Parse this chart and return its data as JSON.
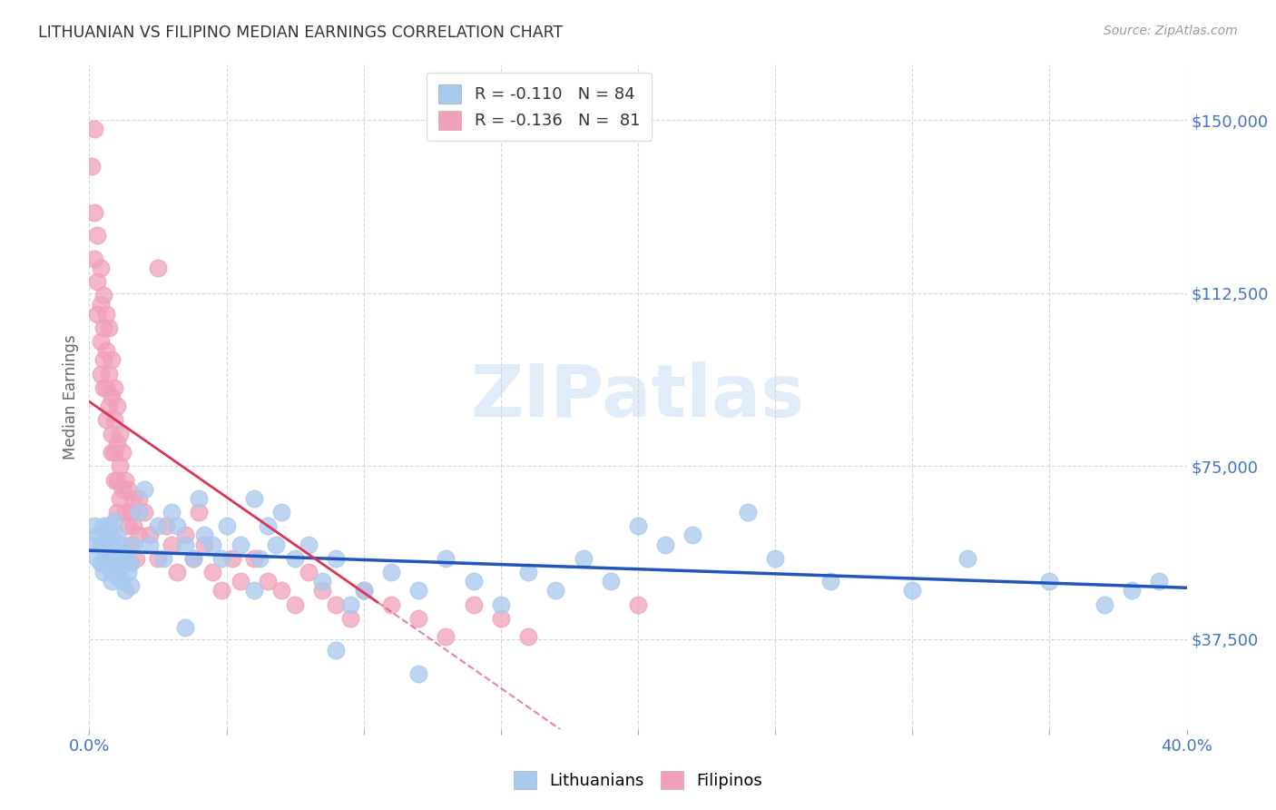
{
  "title": "LITHUANIAN VS FILIPINO MEDIAN EARNINGS CORRELATION CHART",
  "source": "Source: ZipAtlas.com",
  "ylabel": "Median Earnings",
  "yticks": [
    37500,
    75000,
    112500,
    150000
  ],
  "ytick_labels": [
    "$37,500",
    "$75,000",
    "$112,500",
    "$150,000"
  ],
  "bottom_legend_blue": "Lithuanians",
  "bottom_legend_pink": "Filipinos",
  "blue_color": "#A8C8EE",
  "pink_color": "#F0A0B8",
  "blue_line_color": "#2255BB",
  "pink_line_color": "#DD3355",
  "axis_color": "#4472C4",
  "xlim": [
    0.0,
    0.4
  ],
  "ylim": [
    18000,
    162000
  ],
  "blue_R": -0.11,
  "blue_N": 84,
  "pink_R": -0.136,
  "pink_N": 81,
  "blue_x": [
    0.001,
    0.002,
    0.003,
    0.003,
    0.004,
    0.004,
    0.005,
    0.005,
    0.005,
    0.006,
    0.006,
    0.007,
    0.007,
    0.007,
    0.008,
    0.008,
    0.008,
    0.009,
    0.009,
    0.009,
    0.01,
    0.01,
    0.01,
    0.011,
    0.011,
    0.012,
    0.012,
    0.013,
    0.013,
    0.014,
    0.015,
    0.015,
    0.016,
    0.018,
    0.02,
    0.022,
    0.025,
    0.027,
    0.03,
    0.032,
    0.035,
    0.038,
    0.04,
    0.042,
    0.045,
    0.048,
    0.05,
    0.055,
    0.06,
    0.062,
    0.065,
    0.068,
    0.07,
    0.075,
    0.08,
    0.085,
    0.09,
    0.095,
    0.1,
    0.11,
    0.12,
    0.13,
    0.14,
    0.15,
    0.16,
    0.17,
    0.18,
    0.19,
    0.2,
    0.21,
    0.22,
    0.24,
    0.25,
    0.27,
    0.3,
    0.32,
    0.35,
    0.37,
    0.38,
    0.39,
    0.035,
    0.06,
    0.09,
    0.12
  ],
  "blue_y": [
    58000,
    62000,
    55000,
    60000,
    54000,
    58000,
    52000,
    57000,
    62000,
    55000,
    60000,
    53000,
    57000,
    62000,
    50000,
    55000,
    60000,
    53000,
    57000,
    63000,
    51000,
    55000,
    60000,
    53000,
    58000,
    50000,
    56000,
    48000,
    55000,
    52000,
    49000,
    54000,
    58000,
    65000,
    70000,
    58000,
    62000,
    55000,
    65000,
    62000,
    58000,
    55000,
    68000,
    60000,
    58000,
    55000,
    62000,
    58000,
    68000,
    55000,
    62000,
    58000,
    65000,
    55000,
    58000,
    50000,
    55000,
    45000,
    48000,
    52000,
    48000,
    55000,
    50000,
    45000,
    52000,
    48000,
    55000,
    50000,
    62000,
    58000,
    60000,
    65000,
    55000,
    50000,
    48000,
    55000,
    50000,
    45000,
    48000,
    50000,
    40000,
    48000,
    35000,
    30000
  ],
  "pink_x": [
    0.001,
    0.002,
    0.002,
    0.002,
    0.003,
    0.003,
    0.003,
    0.004,
    0.004,
    0.004,
    0.004,
    0.005,
    0.005,
    0.005,
    0.005,
    0.006,
    0.006,
    0.006,
    0.006,
    0.007,
    0.007,
    0.007,
    0.008,
    0.008,
    0.008,
    0.008,
    0.009,
    0.009,
    0.009,
    0.009,
    0.01,
    0.01,
    0.01,
    0.01,
    0.011,
    0.011,
    0.011,
    0.012,
    0.012,
    0.013,
    0.013,
    0.014,
    0.014,
    0.015,
    0.015,
    0.016,
    0.016,
    0.017,
    0.018,
    0.018,
    0.02,
    0.022,
    0.025,
    0.028,
    0.03,
    0.032,
    0.035,
    0.038,
    0.04,
    0.042,
    0.045,
    0.048,
    0.052,
    0.055,
    0.06,
    0.065,
    0.07,
    0.075,
    0.08,
    0.085,
    0.09,
    0.095,
    0.1,
    0.11,
    0.12,
    0.13,
    0.14,
    0.15,
    0.16,
    0.2,
    0.025
  ],
  "pink_y": [
    140000,
    148000,
    130000,
    120000,
    125000,
    115000,
    108000,
    118000,
    110000,
    102000,
    95000,
    112000,
    105000,
    98000,
    92000,
    108000,
    100000,
    92000,
    85000,
    105000,
    95000,
    88000,
    98000,
    90000,
    82000,
    78000,
    92000,
    85000,
    78000,
    72000,
    88000,
    80000,
    72000,
    65000,
    82000,
    75000,
    68000,
    78000,
    70000,
    72000,
    65000,
    70000,
    62000,
    65000,
    58000,
    68000,
    62000,
    55000,
    68000,
    60000,
    65000,
    60000,
    55000,
    62000,
    58000,
    52000,
    60000,
    55000,
    65000,
    58000,
    52000,
    48000,
    55000,
    50000,
    55000,
    50000,
    48000,
    45000,
    52000,
    48000,
    45000,
    42000,
    48000,
    45000,
    42000,
    38000,
    45000,
    42000,
    38000,
    45000,
    118000
  ]
}
